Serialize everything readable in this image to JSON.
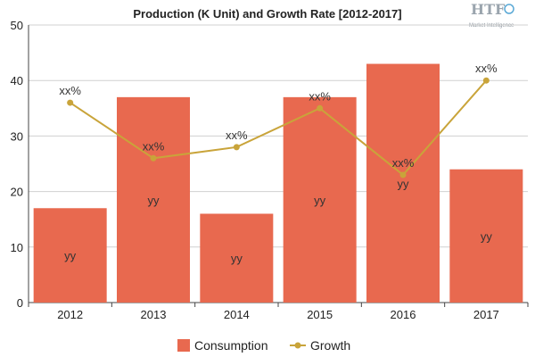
{
  "chart_data": {
    "type": "bar",
    "title": "Production (K Unit) and Growth Rate [2012-2017]",
    "categories": [
      "2012",
      "2013",
      "2014",
      "2015",
      "2016",
      "2017"
    ],
    "ylim": [
      0,
      50
    ],
    "yticks": [
      0,
      10,
      20,
      30,
      40,
      50
    ],
    "grid": true,
    "legend_position": "bottom",
    "series": [
      {
        "name": "Consumption",
        "type": "bar",
        "color": "#e8694f",
        "values": [
          17,
          37,
          16,
          37,
          43,
          24
        ],
        "labels": [
          "yy",
          "yy",
          "yy",
          "yy",
          "yy",
          "yy"
        ]
      },
      {
        "name": "Growth",
        "type": "line",
        "color": "#c9a43a",
        "values": [
          36,
          26,
          28,
          35,
          23,
          40
        ],
        "labels": [
          "xx%",
          "xx%",
          "xx%",
          "xx%",
          "xx%",
          "xx%"
        ]
      }
    ]
  },
  "logo": {
    "main": "HTF",
    "sub": "Market Intelligence"
  }
}
